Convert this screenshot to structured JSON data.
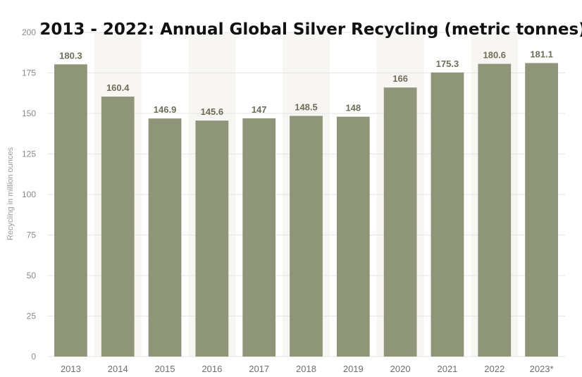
{
  "chart_data": {
    "type": "bar",
    "title": "2013 - 2022: Annual Global Silver Recycling (metric tonnes)",
    "xlabel": "",
    "ylabel": "Recycling in million ounces",
    "categories": [
      "2013",
      "2014",
      "2015",
      "2016",
      "2017",
      "2018",
      "2019",
      "2020",
      "2021",
      "2022",
      "2023*"
    ],
    "values": [
      180.3,
      160.4,
      146.9,
      145.6,
      147,
      148.5,
      148,
      166,
      175.3,
      180.6,
      181.1
    ],
    "value_labels": [
      "180.3",
      "160.4",
      "146.9",
      "145.6",
      "147",
      "148.5",
      "148",
      "166",
      "175.3",
      "180.6",
      "181.1"
    ],
    "ylim": [
      0,
      200
    ],
    "yticks": [
      0,
      25,
      50,
      75,
      100,
      125,
      150,
      175,
      200
    ],
    "grid": true,
    "legend": "none",
    "colors": {
      "bar": "#8f9579",
      "band": "#f7f6f2",
      "grid": "#e6e6e6"
    }
  }
}
